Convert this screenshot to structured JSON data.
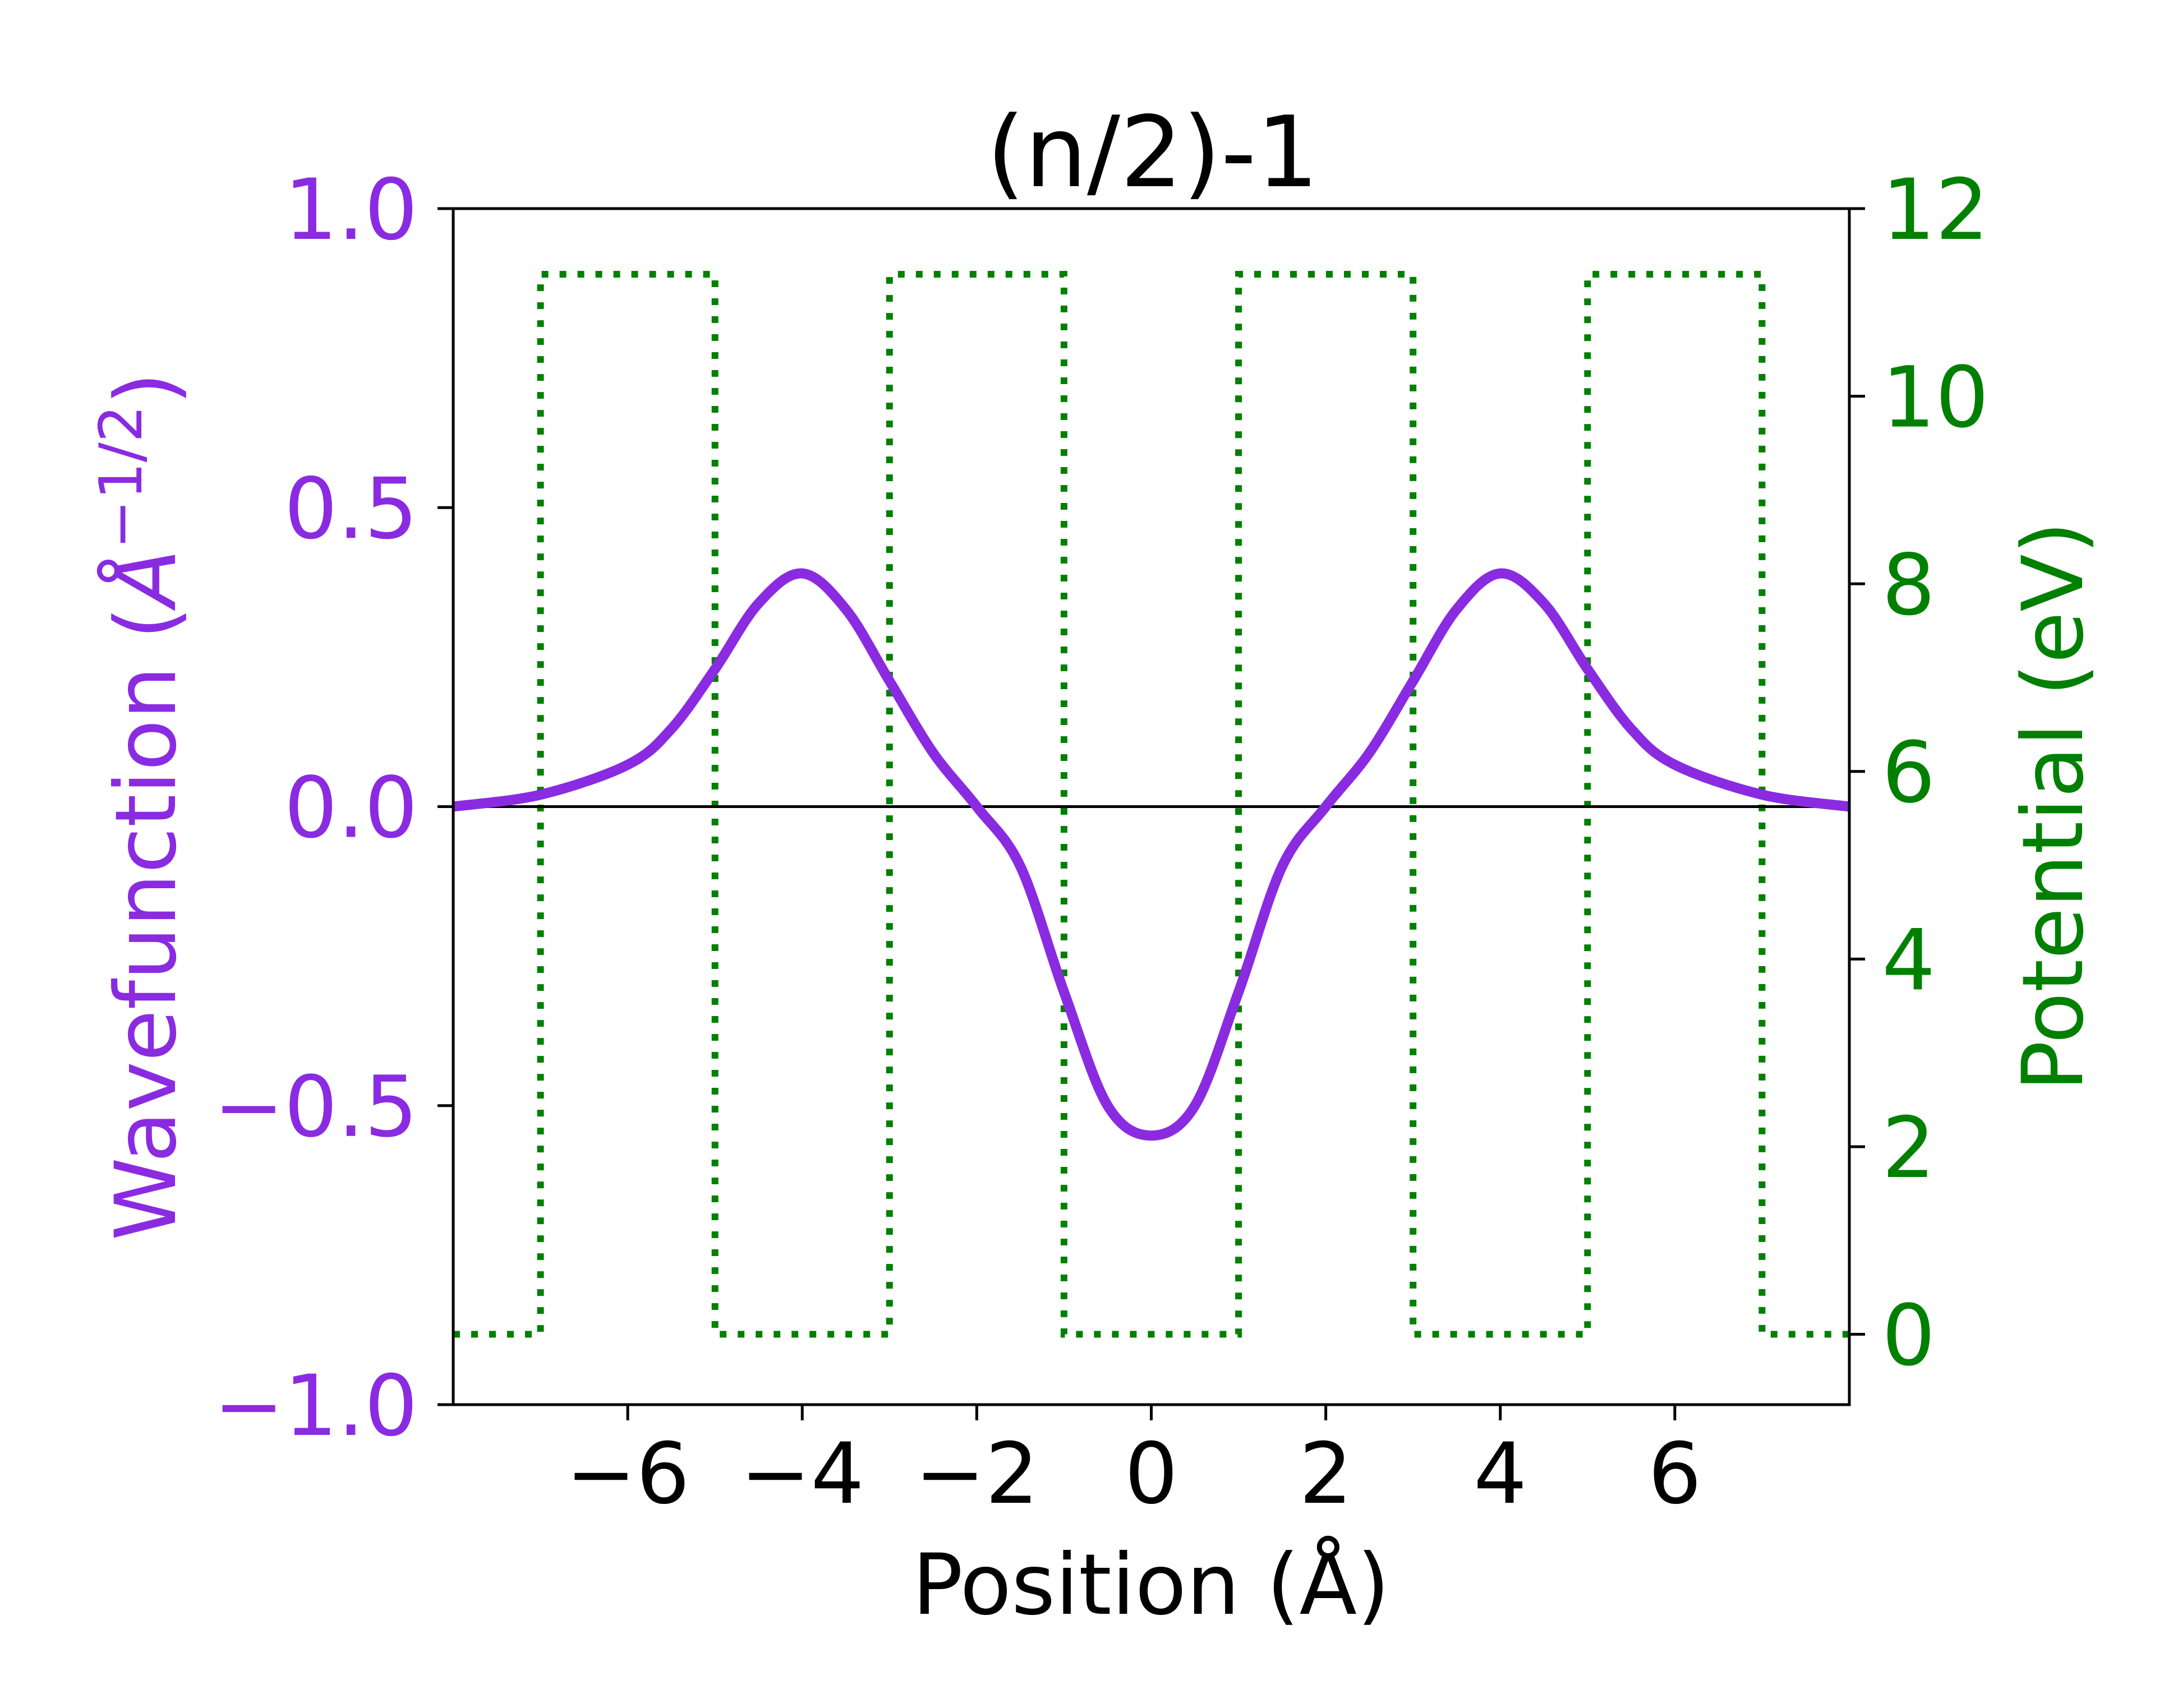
{
  "chart_data": {
    "type": "line",
    "title": "(n/2)-1",
    "xlabel": "Position (Å)",
    "ylabel_left": "Wavefunction (Å^{−1/2})",
    "ylabel_left_main": "Wavefunction (",
    "ylabel_left_sym": "Å",
    "ylabel_left_exp": "−1/2",
    "ylabel_left_close": ")",
    "ylabel_right": "Potential (eV)",
    "xlim": [
      -8.0,
      8.0
    ],
    "ylim_left": [
      -1.0,
      1.0
    ],
    "ylim_right": [
      -0.75,
      12.0
    ],
    "x_ticks": [
      -6,
      -4,
      -2,
      0,
      2,
      4,
      6
    ],
    "x_tick_labels": [
      "−6",
      "−4",
      "−2",
      "0",
      "2",
      "4",
      "6"
    ],
    "y_left_ticks": [
      -1.0,
      -0.5,
      0.0,
      0.5,
      1.0
    ],
    "y_left_tick_labels": [
      "−1.0",
      "−0.5",
      "0.0",
      "0.5",
      "1.0"
    ],
    "y_right_ticks": [
      0,
      2,
      4,
      6,
      8,
      10,
      12
    ],
    "y_right_tick_labels": [
      "0",
      "2",
      "4",
      "6",
      "8",
      "10",
      "12"
    ],
    "colors": {
      "wavefunction": "#8a2be2",
      "potential": "#008000",
      "zero_line": "#000000",
      "axis": "#000000"
    },
    "series": [
      {
        "axis": "left",
        "style": "solid",
        "x": [
          -8.0,
          -7.0,
          -6.0,
          -5.5,
          -5.0,
          -4.5,
          -4.0,
          -3.5,
          -3.0,
          -2.5,
          -2.0,
          -1.5,
          -1.0,
          -0.5,
          0.0,
          0.5,
          1.0,
          1.5,
          2.0,
          2.5,
          3.0,
          3.5,
          4.0,
          4.5,
          5.0,
          5.5,
          6.0,
          7.0,
          8.0
        ],
        "y": [
          0.0,
          0.02,
          0.07,
          0.13,
          0.23,
          0.34,
          0.39,
          0.33,
          0.21,
          0.09,
          0.0,
          -0.1,
          -0.31,
          -0.5,
          -0.55,
          -0.5,
          -0.31,
          -0.1,
          0.0,
          0.09,
          0.21,
          0.33,
          0.39,
          0.34,
          0.23,
          0.13,
          0.07,
          0.02,
          0.0
        ]
      },
      {
        "axis": "right",
        "style": "dotted",
        "x": [
          -8.0,
          -7.0,
          -7.0,
          -5.0,
          -5.0,
          -3.0,
          -3.0,
          -1.0,
          -1.0,
          1.0,
          1.0,
          3.0,
          3.0,
          5.0,
          5.0,
          7.0,
          7.0,
          8.0
        ],
        "y": [
          0,
          0,
          11.3,
          11.3,
          0,
          0,
          11.3,
          11.3,
          0,
          0,
          11.3,
          11.3,
          0,
          0,
          11.3,
          11.3,
          0,
          0
        ]
      }
    ],
    "zero_line": 0.0,
    "grid": false
  }
}
